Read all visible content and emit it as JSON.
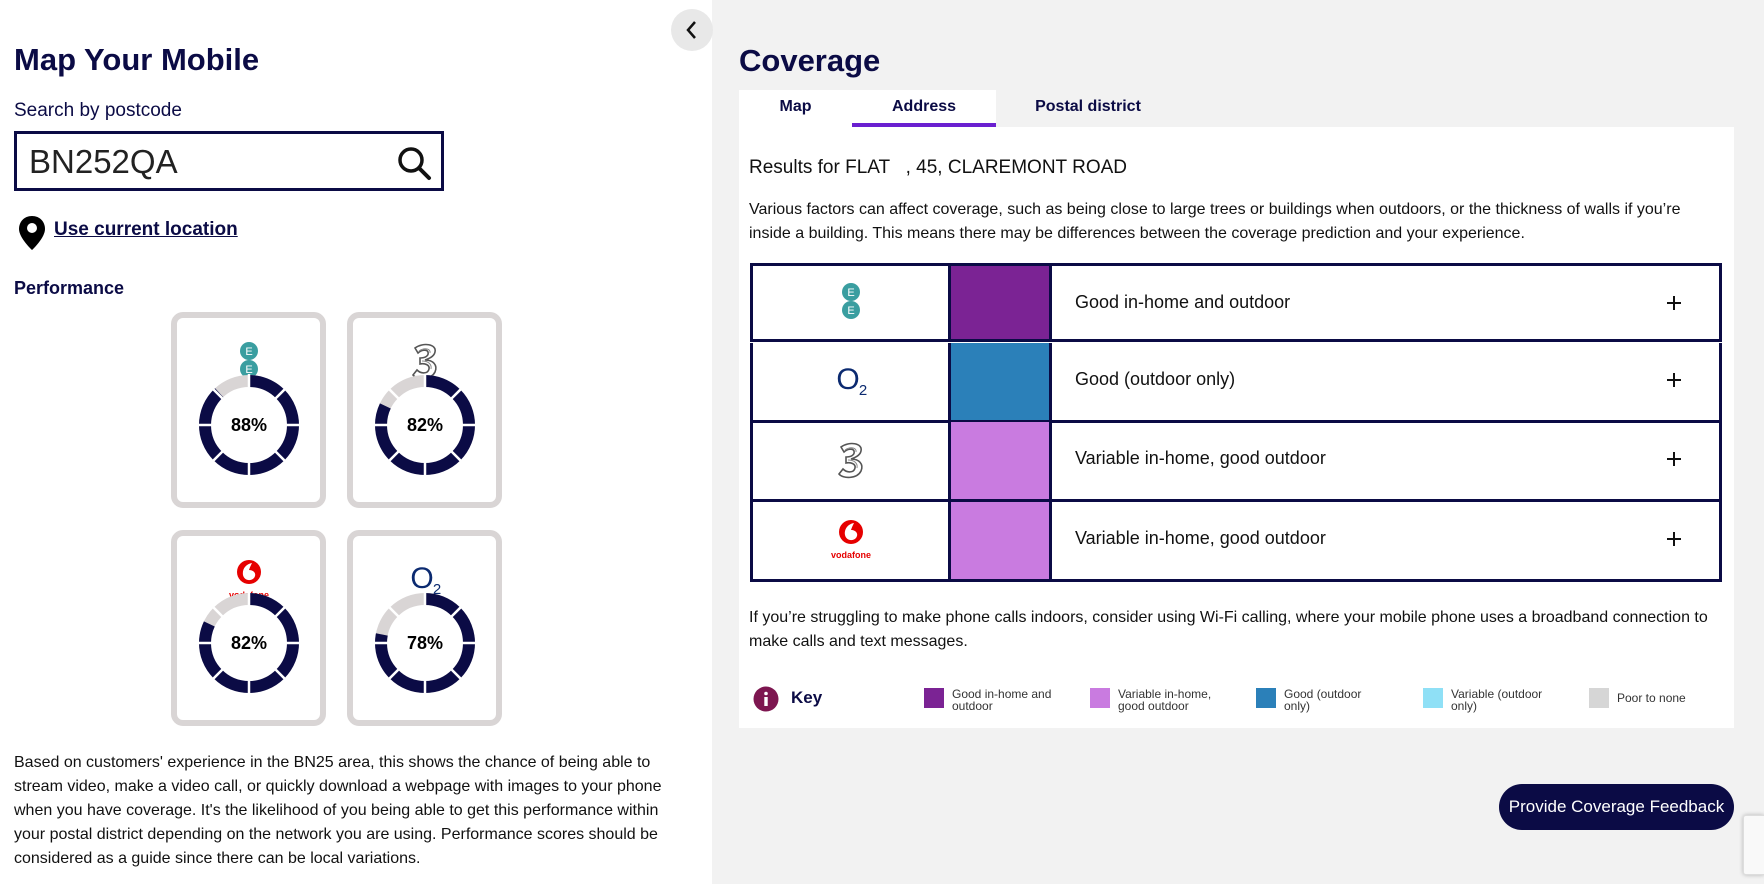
{
  "left": {
    "title": "Map Your Mobile",
    "search_label": "Search by postcode",
    "search_value": "BN252QA",
    "location_link": "Use current location",
    "performance_heading": "Performance",
    "performance": [
      {
        "value": 88,
        "value_label": "88%"
      },
      {
        "value": 82,
        "value_label": "82%"
      },
      {
        "value": 82,
        "value_label": "82%"
      },
      {
        "value": 78,
        "value_label": "78%"
      }
    ],
    "description": "Based on customers' experience in the BN25 area, this shows the chance of being able to stream video, make a video call, or quickly download a webpage with images to your phone when you have coverage. It's the likelihood of you being able to get this performance within your postal district depending on the network you are using. Performance scores should be considered as a guide since there can be local variations."
  },
  "logos": {
    "ee": [
      "E",
      "E"
    ],
    "vodafone": "vodafone",
    "o2": [
      "O",
      "2"
    ]
  },
  "coverage": {
    "title": "Coverage",
    "tabs": [
      "Map",
      "Address",
      "Postal district"
    ],
    "active_tab": 1,
    "results": "Results for FLAT   , 45, CLAREMONT ROAD",
    "intro": "Various factors can affect coverage, such as being close to large trees or buildings when outdoors, or the thickness of walls if you’re inside a building. This means there may be differences between the coverage prediction and your experience.",
    "rows": [
      {
        "color": "#7b2394",
        "label": "Good in-home and outdoor"
      },
      {
        "color": "#2b80b9",
        "label": "Good (outdoor only)"
      },
      {
        "color": "#c97be0",
        "label": "Variable in-home, good outdoor"
      },
      {
        "color": "#c97be0",
        "label": "Variable in-home, good outdoor"
      }
    ],
    "wifi_note": "If you’re struggling to make phone calls indoors, consider using Wi-Fi calling, where your mobile phone uses a broadband connection to make calls and text messages.",
    "key_title": "Key",
    "key": [
      {
        "color": "#7b2394",
        "label": "Good in-home and outdoor"
      },
      {
        "color": "#c97be0",
        "label": "Variable in-home, good outdoor"
      },
      {
        "color": "#2b80b9",
        "label": "Good (outdoor only)"
      },
      {
        "color": "#8fe0f6",
        "label": "Variable (outdoor only)"
      },
      {
        "color": "#d6d6d6",
        "label": "Poor to none"
      }
    ],
    "feedback_button": "Provide Coverage Feedback"
  }
}
